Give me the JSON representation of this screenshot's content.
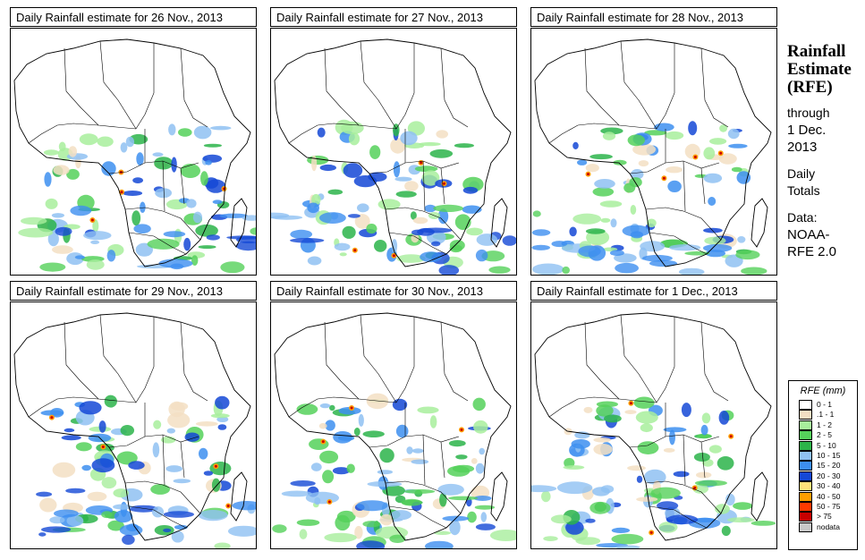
{
  "panels": [
    {
      "title": "Daily Rainfall estimate for  26 Nov., 2013"
    },
    {
      "title": "Daily Rainfall estimate for  27 Nov., 2013"
    },
    {
      "title": "Daily Rainfall estimate for  28 Nov., 2013"
    },
    {
      "title": "Daily Rainfall estimate for  29 Nov., 2013"
    },
    {
      "title": "Daily Rainfall estimate for  30 Nov., 2013"
    },
    {
      "title": "Daily Rainfall estimate for  1 Dec., 2013"
    }
  ],
  "sidebar": {
    "title_line1": "Rainfall",
    "title_line2": "Estimate",
    "title_line3": "(RFE)",
    "through": "through",
    "date_line1": "1 Dec.",
    "date_line2": "2013",
    "daily_line1": "Daily",
    "daily_line2": "Totals",
    "data_line1": "Data:",
    "data_line2": "NOAA-",
    "data_line3": "RFE 2.0"
  },
  "legend": {
    "title": "RFE (mm)",
    "items": [
      {
        "label": "0 - 1",
        "color": "#ffffff"
      },
      {
        "label": ".1 - 1",
        "color": "#f3dfc3"
      },
      {
        "label": "1 - 2",
        "color": "#a8ee9c"
      },
      {
        "label": "2 - 5",
        "color": "#55d15a"
      },
      {
        "label": "5 - 10",
        "color": "#2cb44a"
      },
      {
        "label": "10 - 15",
        "color": "#8fc1f2"
      },
      {
        "label": "15 - 20",
        "color": "#3d8ff0"
      },
      {
        "label": "20 - 30",
        "color": "#1448d6"
      },
      {
        "label": "30 - 40",
        "color": "#ffe27a"
      },
      {
        "label": "40 - 50",
        "color": "#ff9e00"
      },
      {
        "label": "50 - 75",
        "color": "#ff3a00"
      },
      {
        "label": "> 75",
        "color": "#c80000"
      },
      {
        "label": "nodata",
        "color": "#c8c8c8"
      }
    ]
  }
}
